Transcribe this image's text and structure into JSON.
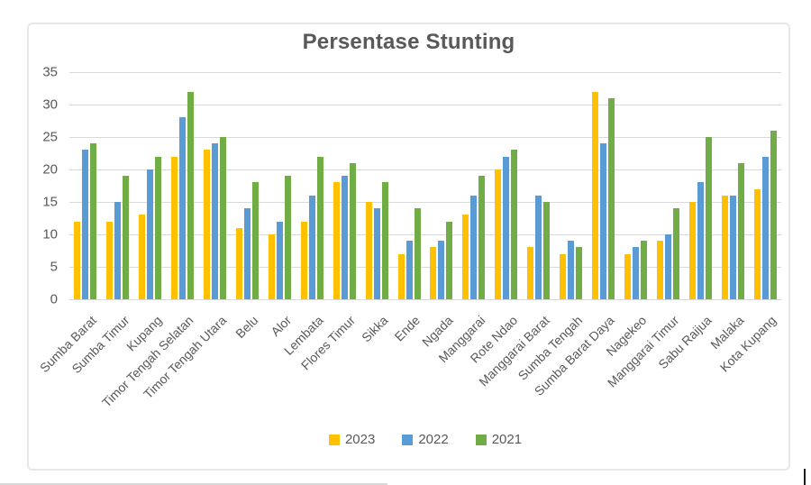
{
  "chart_data": {
    "type": "bar",
    "title": "Persentase Stunting",
    "categories": [
      "Sumba Barat",
      "Sumba Timur",
      "Kupang",
      "Timor Tengah Selatan",
      "Timor Tengah Utara",
      "Belu",
      "Alor",
      "Lembata",
      "Flores Timur",
      "Sikka",
      "Ende",
      "Ngada",
      "Manggarai",
      "Rote Ndao",
      "Manggarai Barat",
      "Sumba Tengah",
      "Sumba Barat Daya",
      "Nagekeo",
      "Manggarai Timur",
      "Sabu Raijua",
      "Malaka",
      "Kota Kupang"
    ],
    "series": [
      {
        "name": "2023",
        "color": "#FFC000",
        "values": [
          12,
          12,
          13,
          22,
          23,
          11,
          10,
          12,
          18,
          15,
          7,
          8,
          13,
          20,
          8,
          7,
          32,
          7,
          9,
          15,
          16,
          17
        ]
      },
      {
        "name": "2022",
        "color": "#5B9BD5",
        "values": [
          23,
          15,
          20,
          28,
          24,
          14,
          12,
          16,
          19,
          14,
          9,
          9,
          16,
          22,
          16,
          9,
          24,
          8,
          10,
          18,
          16,
          22
        ]
      },
      {
        "name": "2021",
        "color": "#70AD47",
        "values": [
          24,
          19,
          22,
          32,
          25,
          18,
          19,
          22,
          21,
          18,
          14,
          12,
          19,
          23,
          15,
          8,
          31,
          9,
          14,
          25,
          21,
          26
        ]
      }
    ],
    "xlabel": "",
    "ylabel": "",
    "ylim": [
      0,
      35
    ],
    "yticks": [
      0,
      5,
      10,
      15,
      20,
      25,
      30,
      35
    ],
    "grid": true,
    "legend_position": "bottom",
    "colors": {
      "grid": "#d9d9d9",
      "text": "#595959"
    }
  }
}
